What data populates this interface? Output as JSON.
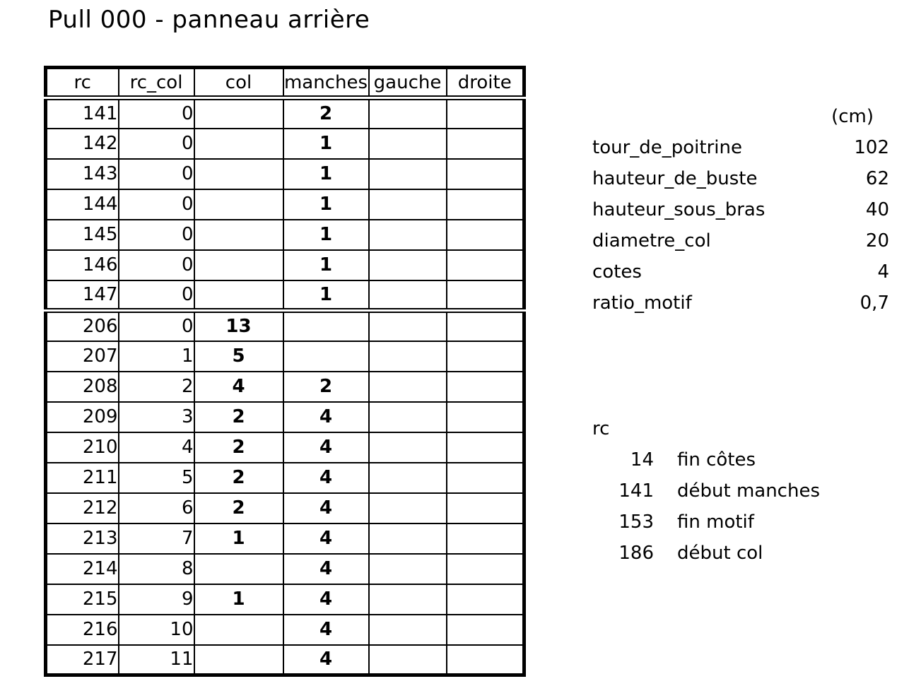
{
  "title": "Pull 000 - panneau arrière",
  "colors": {
    "text": "#000000",
    "background": "#ffffff",
    "border": "#000000"
  },
  "table": {
    "headers": [
      "rc",
      "rc_col",
      "col",
      "manches",
      "gauche",
      "droite"
    ],
    "sections": [
      {
        "rows": [
          [
            "141",
            "0",
            "",
            "2",
            "",
            ""
          ],
          [
            "142",
            "0",
            "",
            "1",
            "",
            ""
          ],
          [
            "143",
            "0",
            "",
            "1",
            "",
            ""
          ],
          [
            "144",
            "0",
            "",
            "1",
            "",
            ""
          ],
          [
            "145",
            "0",
            "",
            "1",
            "",
            ""
          ],
          [
            "146",
            "0",
            "",
            "1",
            "",
            ""
          ],
          [
            "147",
            "0",
            "",
            "1",
            "",
            ""
          ]
        ]
      },
      {
        "rows": [
          [
            "206",
            "0",
            "13",
            "",
            "",
            ""
          ],
          [
            "207",
            "1",
            "5",
            "",
            "",
            ""
          ],
          [
            "208",
            "2",
            "4",
            "2",
            "",
            ""
          ],
          [
            "209",
            "3",
            "2",
            "4",
            "",
            ""
          ],
          [
            "210",
            "4",
            "2",
            "4",
            "",
            ""
          ],
          [
            "211",
            "5",
            "2",
            "4",
            "",
            ""
          ],
          [
            "212",
            "6",
            "2",
            "4",
            "",
            ""
          ],
          [
            "213",
            "7",
            "1",
            "4",
            "",
            ""
          ],
          [
            "214",
            "8",
            "",
            "4",
            "",
            ""
          ],
          [
            "215",
            "9",
            "1",
            "4",
            "",
            ""
          ],
          [
            "216",
            "10",
            "",
            "4",
            "",
            ""
          ],
          [
            "217",
            "11",
            "",
            "4",
            "",
            ""
          ]
        ]
      }
    ]
  },
  "measurements": {
    "unit_header": "(cm)",
    "items": [
      {
        "label": "tour_de_poitrine",
        "value": "102"
      },
      {
        "label": "hauteur_de_buste",
        "value": "62"
      },
      {
        "label": "hauteur_sous_bras",
        "value": "40"
      },
      {
        "label": "diametre_col",
        "value": "20"
      },
      {
        "label": "cotes",
        "value": "4"
      },
      {
        "label": "ratio_motif",
        "value": "0,7"
      }
    ]
  },
  "legend": {
    "header": "rc",
    "items": [
      {
        "rc": "14",
        "label": "fin côtes"
      },
      {
        "rc": "141",
        "label": "début manches"
      },
      {
        "rc": "153",
        "label": "fin motif"
      },
      {
        "rc": "186",
        "label": "début col"
      }
    ]
  }
}
